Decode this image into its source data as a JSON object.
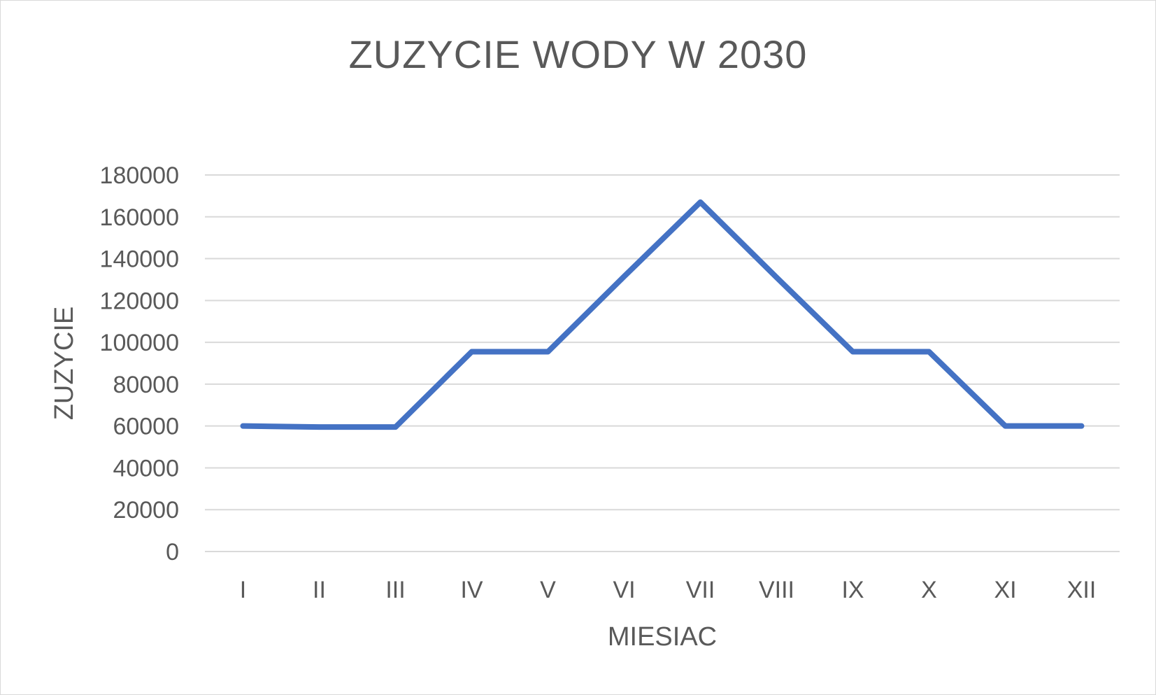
{
  "chart_data": {
    "type": "line",
    "title": "ZUZYCIE WODY W 2030",
    "xlabel": "MIESIAC",
    "ylabel": "ZUZYCIE",
    "categories": [
      "I",
      "II",
      "III",
      "IV",
      "V",
      "VI",
      "VII",
      "VIII",
      "IX",
      "X",
      "XI",
      "XII"
    ],
    "series": [
      {
        "values": [
          60000,
          59500,
          59500,
          95500,
          95500,
          131500,
          167000,
          131000,
          95500,
          95500,
          60000,
          60000
        ]
      }
    ],
    "ylim": [
      0,
      180000
    ],
    "yticks": [
      "0",
      "20000",
      "40000",
      "60000",
      "80000",
      "100000",
      "120000",
      "140000",
      "160000",
      "180000"
    ],
    "grid": true,
    "legend": "none",
    "colors": {
      "line": "#4472c4",
      "grid": "#d9d9d9",
      "text": "#595959"
    }
  }
}
